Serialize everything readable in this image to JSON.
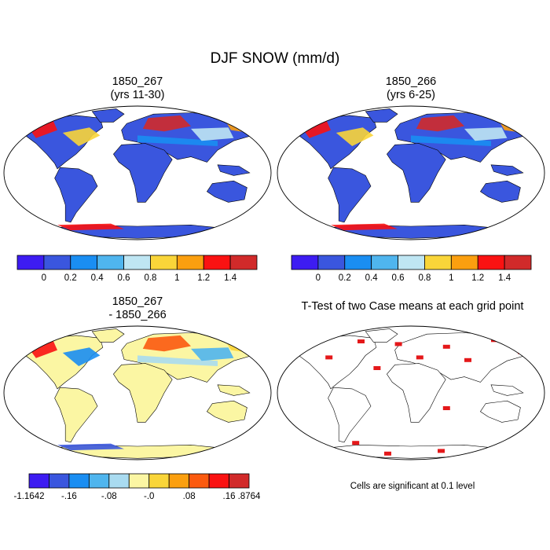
{
  "figure": {
    "title": "DJF SNOW (mm/d)"
  },
  "panels": [
    {
      "id": "p1",
      "title_line1": "1850_267",
      "title_line2": "(yrs 11-30)"
    },
    {
      "id": "p2",
      "title_line1": "1850_266",
      "title_line2": "(yrs 6-25)"
    },
    {
      "id": "p3",
      "title_line1": "1850_267",
      "title_line2": "- 1850_266"
    },
    {
      "id": "p4",
      "title_line1": "T-Test of two Case means at each grid point",
      "title_line2": ""
    }
  ],
  "colorbars": {
    "absolute": {
      "colors": [
        "#3d1cf2",
        "#3a56de",
        "#1a8ef2",
        "#4fb5ee",
        "#bfe6f3",
        "#f9d539",
        "#fb9f0f",
        "#fa1212",
        "#d12a2a"
      ],
      "labels": [
        "0",
        "0.2",
        "0.4",
        "0.6",
        "0.8",
        "1",
        "1.2",
        "1.4"
      ]
    },
    "difference": {
      "colors": [
        "#3d1cf2",
        "#3a56de",
        "#1a8ef2",
        "#4fb5ee",
        "#a9dbf0",
        "#fbf6a3",
        "#f9d539",
        "#fb9f0f",
        "#fb5a0f",
        "#fa1212",
        "#d12a2a"
      ],
      "labels": [
        "-1.1642",
        "-.16",
        "-.08",
        "-.0",
        ".08",
        ".16",
        ".8764"
      ]
    }
  },
  "map_colors": {
    "ocean": "#ffffff",
    "land_low": "#3a56de",
    "land_diff_neutral": "#fbf6a3",
    "signif": "#e4181a",
    "coast": "#000000"
  },
  "note": "Cells are significant at 0.1 level"
}
